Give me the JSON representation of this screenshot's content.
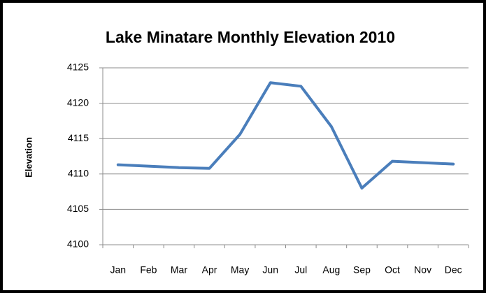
{
  "chart_data": {
    "type": "line",
    "title": "Lake Minatare Monthly Elevation 2010",
    "y_label": "Elevation",
    "categories": [
      "Jan",
      "Feb",
      "Mar",
      "Apr",
      "May",
      "Jun",
      "Jul",
      "Aug",
      "Sep",
      "Oct",
      "Nov",
      "Dec"
    ],
    "series": [
      {
        "name": "Elevation",
        "color": "#4a7ebb",
        "values": [
          4111.3,
          4111.1,
          4110.9,
          4110.8,
          4115.6,
          4122.9,
          4122.4,
          4116.7,
          4108.0,
          4111.8,
          4111.6,
          4111.4
        ]
      }
    ],
    "ylim": [
      4100,
      4125
    ],
    "yticks": [
      4100,
      4105,
      4110,
      4115,
      4120,
      4125
    ],
    "grid": true
  }
}
